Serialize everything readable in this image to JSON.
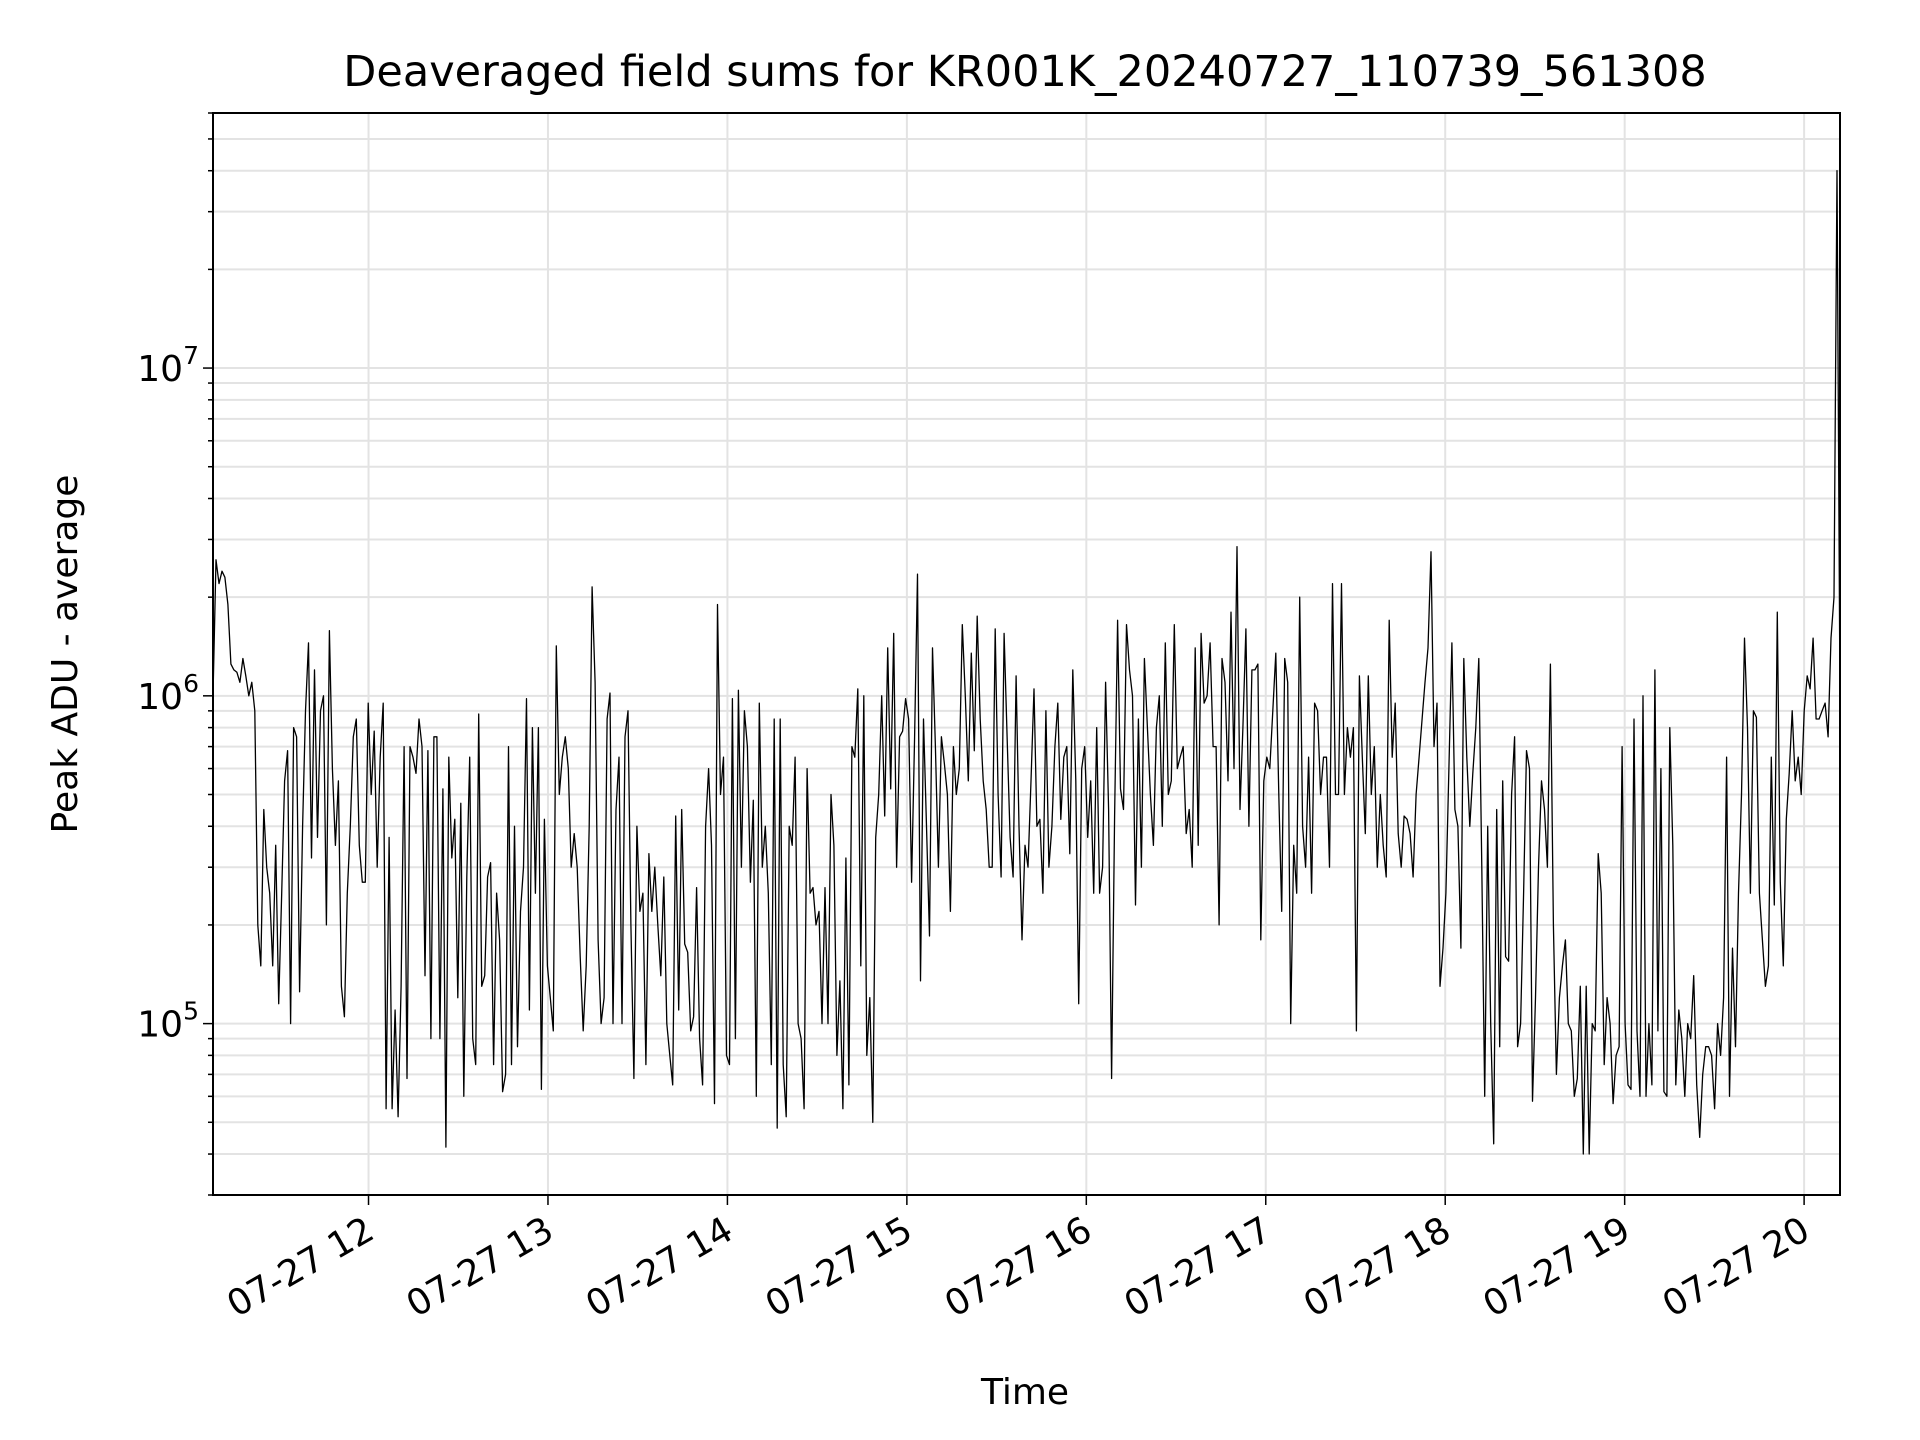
{
  "chart_data": {
    "type": "line",
    "title": "Deaveraged field sums for KR001K_20240727_110739_561308",
    "xlabel": "Time",
    "ylabel": "Peak ADU - average",
    "yscale": "log",
    "ylim": [
      30000,
      60000000
    ],
    "xlim": [
      "07-27 11:08",
      "07-27 20:12"
    ],
    "x_ticks": [
      "07-27 12",
      "07-27 13",
      "07-27 14",
      "07-27 15",
      "07-27 16",
      "07-27 17",
      "07-27 18",
      "07-27 19",
      "07-27 20"
    ],
    "y_ticks": [
      {
        "base": "10",
        "exp": "5",
        "value": 100000
      },
      {
        "base": "10",
        "exp": "6",
        "value": 1000000
      },
      {
        "base": "10",
        "exp": "7",
        "value": 10000000
      }
    ],
    "grid": true,
    "line_color": "#000000",
    "series": [
      {
        "x_start": "07-27 11:08",
        "x_end": "07-27 20:12",
        "values": [
          1000000,
          2600000,
          2200000,
          2400000,
          2300000,
          1900000,
          1250000,
          1200000,
          1180000,
          1100000,
          1300000,
          1150000,
          1000000,
          1100000,
          900000,
          200000,
          150000,
          450000,
          300000,
          250000,
          150000,
          350000,
          115000,
          250000,
          550000,
          680000,
          100000,
          800000,
          750000,
          125000,
          400000,
          900000,
          1450000,
          320000,
          1200000,
          370000,
          900000,
          1000000,
          200000,
          1580000,
          600000,
          350000,
          550000,
          130000,
          105000,
          250000,
          400000,
          750000,
          850000,
          350000,
          270000,
          270000,
          950000,
          500000,
          780000,
          300000,
          650000,
          950000,
          55000,
          370000,
          55000,
          110000,
          52000,
          130000,
          700000,
          68000,
          700000,
          650000,
          580000,
          850000,
          700000,
          140000,
          680000,
          90000,
          750000,
          750000,
          90000,
          520000,
          42000,
          650000,
          320000,
          420000,
          120000,
          470000,
          60000,
          280000,
          650000,
          90000,
          75000,
          880000,
          130000,
          140000,
          280000,
          310000,
          75000,
          250000,
          180000,
          62000,
          70000,
          700000,
          75000,
          400000,
          85000,
          220000,
          300000,
          980000,
          110000,
          800000,
          250000,
          800000,
          63000,
          420000,
          150000,
          120000,
          95000,
          1420000,
          500000,
          650000,
          750000,
          600000,
          300000,
          380000,
          300000,
          160000,
          95000,
          150000,
          400000,
          2150000,
          1100000,
          180000,
          100000,
          120000,
          850000,
          1020000,
          100000,
          450000,
          650000,
          100000,
          750000,
          900000,
          200000,
          68000,
          400000,
          220000,
          250000,
          75000,
          330000,
          220000,
          300000,
          200000,
          140000,
          280000,
          100000,
          80000,
          65000,
          430000,
          110000,
          450000,
          175000,
          165000,
          95000,
          105000,
          260000,
          90000,
          65000,
          400000,
          600000,
          350000,
          57000,
          1900000,
          500000,
          650000,
          80000,
          75000,
          980000,
          90000,
          1040000,
          300000,
          900000,
          700000,
          270000,
          480000,
          60000,
          950000,
          300000,
          400000,
          250000,
          75000,
          850000,
          48000,
          850000,
          75000,
          52000,
          400000,
          350000,
          650000,
          100000,
          90000,
          55000,
          600000,
          250000,
          260000,
          200000,
          220000,
          100000,
          260000,
          100000,
          500000,
          350000,
          80000,
          135000,
          55000,
          320000,
          65000,
          700000,
          650000,
          1050000,
          150000,
          1000000,
          80000,
          120000,
          50000,
          370000,
          500000,
          1000000,
          430000,
          1400000,
          520000,
          1550000,
          300000,
          750000,
          780000,
          980000,
          850000,
          270000,
          750000,
          2350000,
          135000,
          850000,
          400000,
          185000,
          1400000,
          700000,
          300000,
          750000,
          620000,
          500000,
          220000,
          700000,
          500000,
          600000,
          1650000,
          1000000,
          550000,
          1350000,
          680000,
          1750000,
          850000,
          550000,
          450000,
          300000,
          300000,
          1600000,
          500000,
          280000,
          1550000,
          750000,
          370000,
          280000,
          1150000,
          400000,
          180000,
          350000,
          300000,
          550000,
          1050000,
          400000,
          420000,
          250000,
          900000,
          300000,
          400000,
          700000,
          950000,
          420000,
          650000,
          700000,
          330000,
          1200000,
          550000,
          115000,
          600000,
          700000,
          370000,
          550000,
          250000,
          800000,
          250000,
          300000,
          1100000,
          450000,
          68000,
          430000,
          1700000,
          520000,
          450000,
          1650000,
          1200000,
          1000000,
          230000,
          850000,
          300000,
          1300000,
          800000,
          500000,
          350000,
          800000,
          1000000,
          400000,
          1450000,
          500000,
          550000,
          1650000,
          600000,
          650000,
          700000,
          380000,
          450000,
          300000,
          1400000,
          350000,
          1550000,
          950000,
          1000000,
          1450000,
          700000,
          700000,
          200000,
          1300000,
          1100000,
          550000,
          1800000,
          600000,
          2850000,
          450000,
          800000,
          1600000,
          400000,
          1200000,
          1200000,
          1250000,
          180000,
          550000,
          650000,
          600000,
          900000,
          1350000,
          500000,
          220000,
          1300000,
          1100000,
          100000,
          350000,
          250000,
          2000000,
          400000,
          300000,
          650000,
          250000,
          950000,
          900000,
          500000,
          650000,
          650000,
          300000,
          2200000,
          500000,
          500000,
          2200000,
          500000,
          800000,
          650000,
          800000,
          95000,
          1150000,
          650000,
          380000,
          1150000,
          500000,
          700000,
          300000,
          500000,
          350000,
          280000,
          1700000,
          650000,
          950000,
          380000,
          300000,
          430000,
          420000,
          380000,
          280000,
          500000,
          650000,
          850000,
          1100000,
          1400000,
          2750000,
          700000,
          950000,
          130000,
          170000,
          250000,
          600000,
          1450000,
          450000,
          400000,
          170000,
          1300000,
          650000,
          400000,
          580000,
          800000,
          1300000,
          300000,
          60000,
          400000,
          100000,
          43000,
          450000,
          85000,
          550000,
          160000,
          155000,
          500000,
          750000,
          85000,
          100000,
          250000,
          680000,
          600000,
          58000,
          120000,
          300000,
          550000,
          450000,
          300000,
          1250000,
          200000,
          70000,
          120000,
          150000,
          180000,
          100000,
          95000,
          60000,
          68000,
          130000,
          40000,
          130000,
          40000,
          100000,
          95000,
          330000,
          250000,
          75000,
          120000,
          100000,
          57000,
          80000,
          85000,
          700000,
          100000,
          65000,
          63000,
          850000,
          95000,
          60000,
          1000000,
          60000,
          100000,
          65000,
          1200000,
          95000,
          600000,
          62000,
          60000,
          800000,
          350000,
          65000,
          110000,
          90000,
          60000,
          100000,
          90000,
          140000,
          65000,
          45000,
          70000,
          85000,
          85000,
          80000,
          55000,
          100000,
          80000,
          120000,
          650000,
          60000,
          170000,
          85000,
          250000,
          500000,
          1500000,
          800000,
          250000,
          900000,
          860000,
          250000,
          180000,
          130000,
          150000,
          650000,
          230000,
          1800000,
          270000,
          150000,
          420000,
          580000,
          900000,
          550000,
          650000,
          500000,
          900000,
          1150000,
          1050000,
          1500000,
          850000,
          850000,
          900000,
          950000,
          750000,
          1500000,
          2000000,
          40000000,
          950000
        ]
      }
    ]
  }
}
